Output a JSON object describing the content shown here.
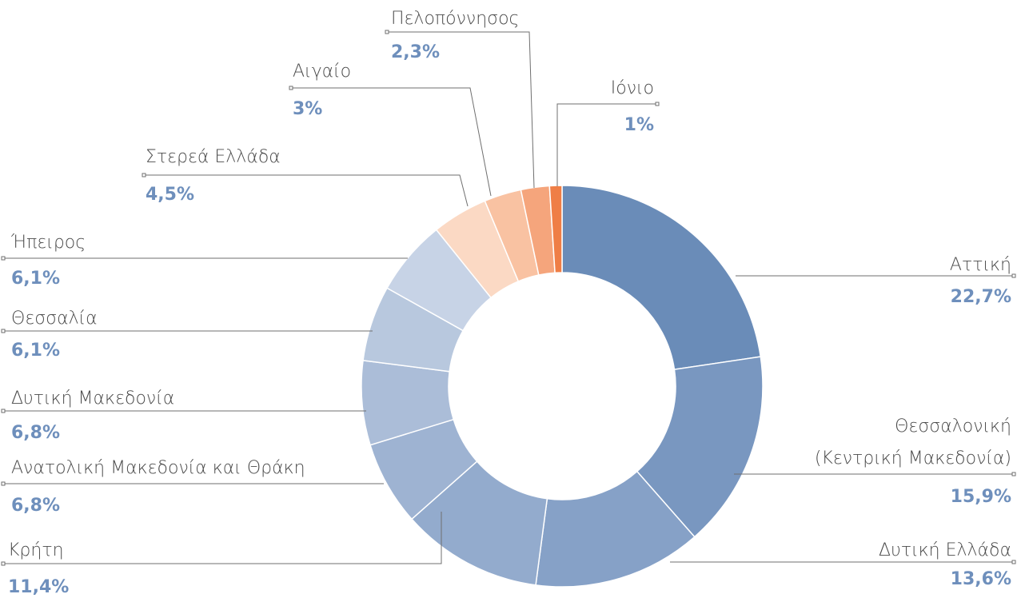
{
  "chart_data": {
    "type": "pie",
    "variant": "donut",
    "title": "",
    "slices": [
      {
        "label": "Αττική",
        "label_lines": [
          "Αττική"
        ],
        "value": 22.7,
        "value_label": "22,7%",
        "color": "#6a8cb8"
      },
      {
        "label": "Θεσσαλονική (Κεντρική Μακεδονία)",
        "label_lines": [
          "Θεσσαλονική",
          "(Κεντρική Μακεδονία)"
        ],
        "value": 15.9,
        "value_label": "15,9%",
        "color": "#7997c0"
      },
      {
        "label": "Δυτική Ελλάδα",
        "label_lines": [
          "Δυτική Ελλάδα"
        ],
        "value": 13.6,
        "value_label": "13,6%",
        "color": "#86a1c7"
      },
      {
        "label": "Κρήτη",
        "label_lines": [
          "Κρήτη"
        ],
        "value": 11.4,
        "value_label": "11,4%",
        "color": "#93abcd"
      },
      {
        "label": "Ανατολική Μακεδονία και Θράκη",
        "label_lines": [
          "Ανατολική Μακεδονία και Θράκη"
        ],
        "value": 6.8,
        "value_label": "6,8%",
        "color": "#9eb3d2"
      },
      {
        "label": "Δυτική Μακεδονία",
        "label_lines": [
          "Δυτική Μακεδονία"
        ],
        "value": 6.8,
        "value_label": "6,8%",
        "color": "#abbdd8"
      },
      {
        "label": "Θεσσαλία",
        "label_lines": [
          "Θεσσαλία"
        ],
        "value": 6.1,
        "value_label": "6,1%",
        "color": "#b8c8de"
      },
      {
        "label": "Ήπειρος",
        "label_lines": [
          "Ήπειρος"
        ],
        "value": 6.1,
        "value_label": "6,1%",
        "color": "#c7d3e6"
      },
      {
        "label": "Στερεά Ελλάδα",
        "label_lines": [
          "Στερεά Ελλάδα"
        ],
        "value": 4.5,
        "value_label": "4,5%",
        "color": "#fbd9c4"
      },
      {
        "label": "Αιγαίο",
        "label_lines": [
          "Αιγαίο"
        ],
        "value": 3,
        "value_label": "3%",
        "color": "#f9c2a2"
      },
      {
        "label": "Πελοπόννησος",
        "label_lines": [
          "Πελοπόννησος"
        ],
        "value": 2.3,
        "value_label": "2,3%",
        "color": "#f5a57c"
      },
      {
        "label": "Ιόνιο",
        "label_lines": [
          "Ιόνιο"
        ],
        "value": 1,
        "value_label": "1%",
        "color": "#ef7e46"
      }
    ]
  }
}
